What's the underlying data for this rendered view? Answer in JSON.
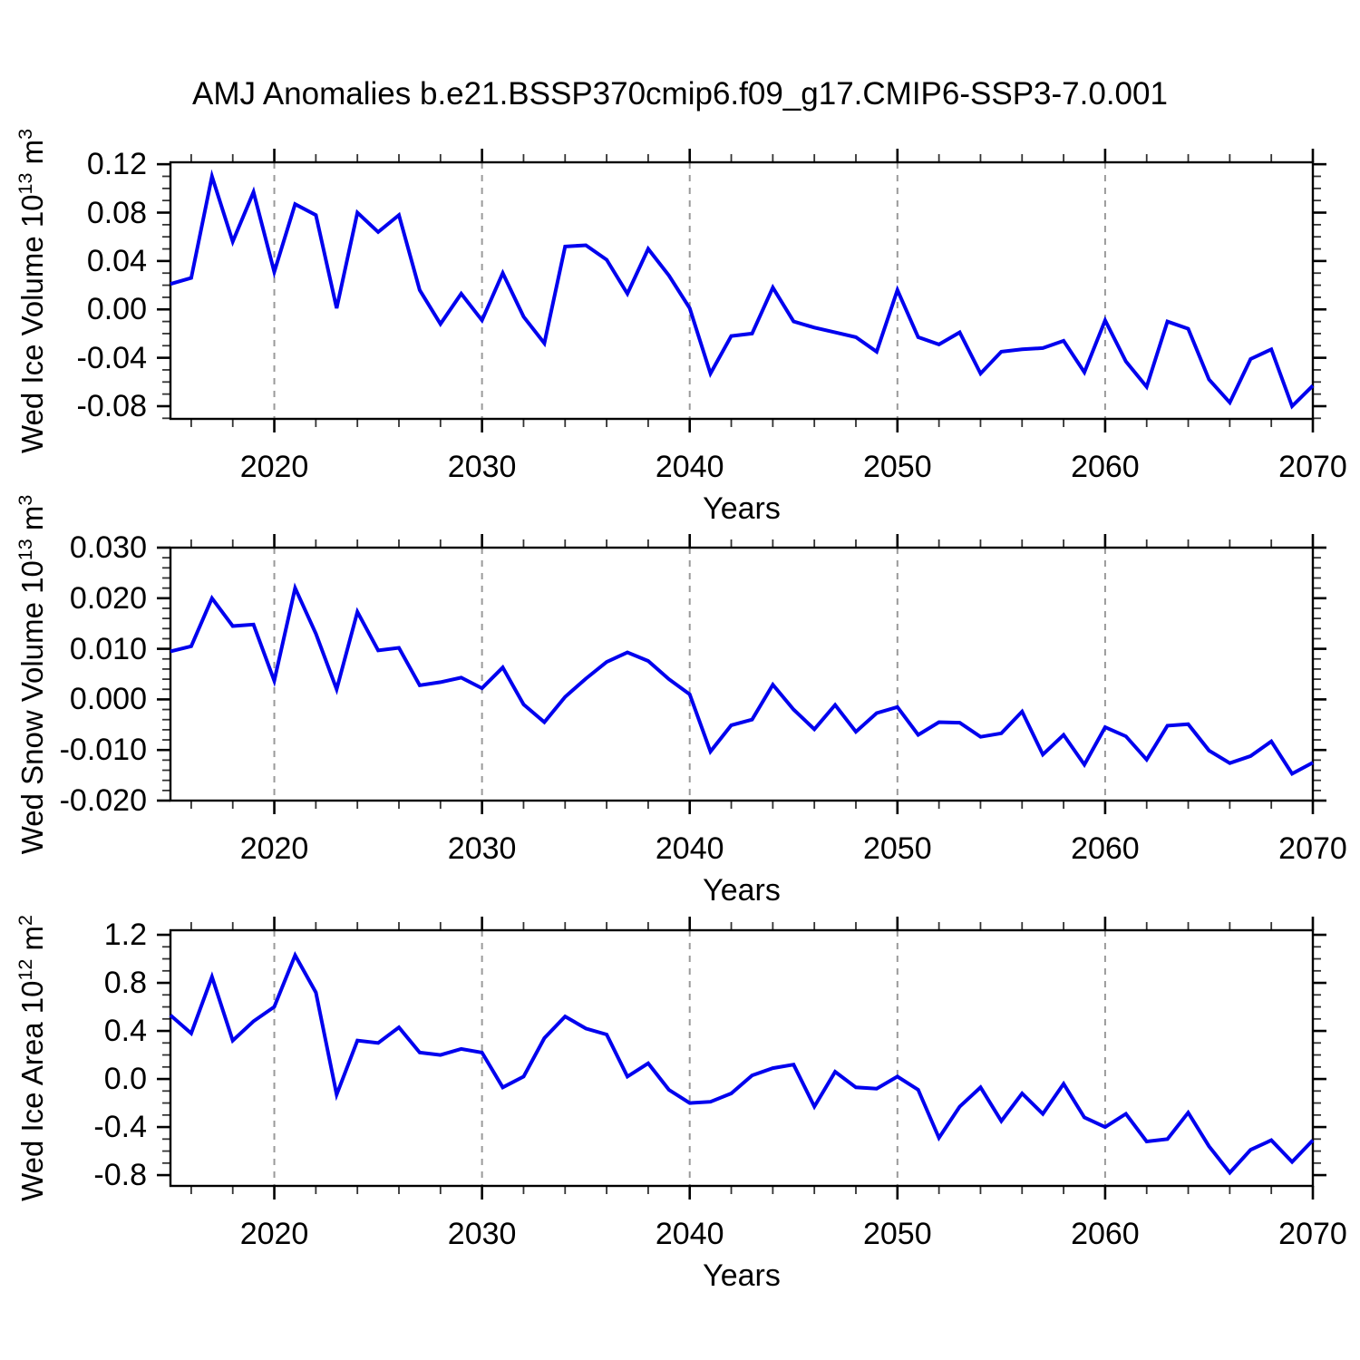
{
  "title": "AMJ Anomalies b.e21.BSSP370cmip6.f09_g17.CMIP6-SSP3-7.0.001",
  "colors": {
    "line": "#0000EE",
    "grid": "#9a9a9a",
    "axis": "#000000",
    "minor_tick": "#333333",
    "text": "#000000",
    "background": "#ffffff"
  },
  "chart_data": [
    {
      "type": "line",
      "name": "wed-ice-volume",
      "ylabel_text": "Wed Ice Volume 10^13 m^3",
      "ylabel_segments": [
        {
          "t": "Wed Ice Volume 10"
        },
        {
          "t": "13",
          "sup": true
        },
        {
          "t": " m"
        },
        {
          "t": "3",
          "sup": true
        }
      ],
      "xlabel": "Years",
      "xlim": [
        2015,
        2070
      ],
      "ylim": [
        -0.0905,
        0.1216
      ],
      "xticks": [
        2020,
        2030,
        2040,
        2050,
        2060,
        2070
      ],
      "xtick_labels": [
        "2020",
        "2030",
        "2040",
        "2050",
        "2060",
        "2070"
      ],
      "xtick_minor_step": 2,
      "ytick_values": [
        0.12,
        0.08,
        0.04,
        0.0,
        -0.04,
        -0.08
      ],
      "ytick_labels": [
        "0.12",
        "0.08",
        "0.04",
        "0.00",
        "-0.04",
        "-0.08"
      ],
      "ytick_major_step": 0.04,
      "ytick_minor_step": 0.01,
      "grid_years": [
        2020,
        2030,
        2040,
        2050,
        2060
      ],
      "grid_on": true,
      "legend": "none",
      "x": [
        2015,
        2016,
        2017,
        2018,
        2019,
        2020,
        2021,
        2022,
        2023,
        2024,
        2025,
        2026,
        2027,
        2028,
        2029,
        2030,
        2031,
        2032,
        2033,
        2034,
        2035,
        2036,
        2037,
        2038,
        2039,
        2040,
        2041,
        2042,
        2043,
        2044,
        2045,
        2046,
        2047,
        2048,
        2049,
        2050,
        2051,
        2052,
        2053,
        2054,
        2055,
        2056,
        2057,
        2058,
        2059,
        2060,
        2061,
        2062,
        2063,
        2064,
        2065,
        2066,
        2067,
        2068,
        2069,
        2070
      ],
      "values": [
        0.021,
        0.026,
        0.11,
        0.056,
        0.097,
        0.031,
        0.087,
        0.078,
        0.001,
        0.08,
        0.064,
        0.078,
        0.016,
        -0.012,
        0.013,
        -0.009,
        0.03,
        -0.006,
        -0.028,
        0.052,
        0.053,
        0.041,
        0.013,
        0.05,
        0.028,
        0.001,
        -0.053,
        -0.022,
        -0.02,
        0.018,
        -0.01,
        -0.015,
        -0.019,
        -0.023,
        -0.035,
        0.016,
        -0.023,
        -0.029,
        -0.019,
        -0.053,
        -0.035,
        -0.033,
        -0.032,
        -0.026,
        -0.052,
        -0.009,
        -0.043,
        -0.064,
        -0.01,
        -0.016,
        -0.058,
        -0.077,
        -0.041,
        -0.033,
        -0.08,
        -0.063
      ]
    },
    {
      "type": "line",
      "name": "wed-snow-volume",
      "ylabel_text": "Wed Snow Volume 10^13 m^3",
      "ylabel_segments": [
        {
          "t": "Wed Snow Volume 10"
        },
        {
          "t": "13",
          "sup": true
        },
        {
          "t": " m"
        },
        {
          "t": "3",
          "sup": true
        }
      ],
      "xlabel": "Years",
      "xlim": [
        2015,
        2070
      ],
      "ylim": [
        -0.02,
        0.03
      ],
      "xticks": [
        2020,
        2030,
        2040,
        2050,
        2060,
        2070
      ],
      "xtick_labels": [
        "2020",
        "2030",
        "2040",
        "2050",
        "2060",
        "2070"
      ],
      "xtick_minor_step": 2,
      "ytick_values": [
        0.03,
        0.02,
        0.01,
        0.0,
        -0.01,
        -0.02
      ],
      "ytick_labels": [
        "0.030",
        "0.020",
        "0.010",
        "0.000",
        "-0.010",
        "-0.020"
      ],
      "ytick_major_step": 0.01,
      "ytick_minor_step": 0.002,
      "grid_years": [
        2020,
        2030,
        2040,
        2050,
        2060
      ],
      "grid_on": true,
      "legend": "none",
      "x": [
        2015,
        2016,
        2017,
        2018,
        2019,
        2020,
        2021,
        2022,
        2023,
        2024,
        2025,
        2026,
        2027,
        2028,
        2029,
        2030,
        2031,
        2032,
        2033,
        2034,
        2035,
        2036,
        2037,
        2038,
        2039,
        2040,
        2041,
        2042,
        2043,
        2044,
        2045,
        2046,
        2047,
        2048,
        2049,
        2050,
        2051,
        2052,
        2053,
        2054,
        2055,
        2056,
        2057,
        2058,
        2059,
        2060,
        2061,
        2062,
        2063,
        2064,
        2065,
        2066,
        2067,
        2068,
        2069,
        2070
      ],
      "values": [
        0.0095,
        0.0105,
        0.02,
        0.0145,
        0.0148,
        0.0037,
        0.022,
        0.013,
        0.002,
        0.0173,
        0.0097,
        0.0102,
        0.0028,
        0.0034,
        0.0043,
        0.0022,
        0.0063,
        -0.001,
        -0.0045,
        0.0005,
        0.0041,
        0.0074,
        0.0093,
        0.0076,
        0.004,
        0.001,
        -0.0103,
        -0.0051,
        -0.004,
        0.0029,
        -0.002,
        -0.0059,
        -0.0011,
        -0.0064,
        -0.0027,
        -0.0015,
        -0.007,
        -0.0045,
        -0.0046,
        -0.0074,
        -0.0067,
        -0.0024,
        -0.0109,
        -0.007,
        -0.0129,
        -0.0055,
        -0.0073,
        -0.0119,
        -0.0052,
        -0.0049,
        -0.0101,
        -0.0126,
        -0.0112,
        -0.0083,
        -0.0147,
        -0.0125
      ]
    },
    {
      "type": "line",
      "name": "wed-ice-area",
      "ylabel_text": "Wed Ice Area 10^12 m^2",
      "ylabel_segments": [
        {
          "t": "Wed Ice Area 10"
        },
        {
          "t": "12",
          "sup": true
        },
        {
          "t": " m"
        },
        {
          "t": "2",
          "sup": true
        }
      ],
      "xlabel": "Years",
      "xlim": [
        2015,
        2070
      ],
      "ylim": [
        -0.89,
        1.238
      ],
      "xticks": [
        2020,
        2030,
        2040,
        2050,
        2060,
        2070
      ],
      "xtick_labels": [
        "2020",
        "2030",
        "2040",
        "2050",
        "2060",
        "2070"
      ],
      "xtick_minor_step": 2,
      "ytick_values": [
        1.2,
        0.8,
        0.4,
        0.0,
        -0.4,
        -0.8
      ],
      "ytick_labels": [
        "1.2",
        "0.8",
        "0.4",
        "0.0",
        "-0.4",
        "-0.8"
      ],
      "ytick_major_step": 0.4,
      "ytick_minor_step": 0.1,
      "grid_years": [
        2020,
        2030,
        2040,
        2050,
        2060
      ],
      "grid_on": true,
      "legend": "none",
      "x": [
        2015,
        2016,
        2017,
        2018,
        2019,
        2020,
        2021,
        2022,
        2023,
        2024,
        2025,
        2026,
        2027,
        2028,
        2029,
        2030,
        2031,
        2032,
        2033,
        2034,
        2035,
        2036,
        2037,
        2038,
        2039,
        2040,
        2041,
        2042,
        2043,
        2044,
        2045,
        2046,
        2047,
        2048,
        2049,
        2050,
        2051,
        2052,
        2053,
        2054,
        2055,
        2056,
        2057,
        2058,
        2059,
        2060,
        2061,
        2062,
        2063,
        2064,
        2065,
        2066,
        2067,
        2068,
        2069,
        2070
      ],
      "values": [
        0.53,
        0.38,
        0.85,
        0.32,
        0.48,
        0.6,
        1.03,
        0.72,
        -0.13,
        0.32,
        0.3,
        0.43,
        0.22,
        0.2,
        0.25,
        0.22,
        -0.07,
        0.02,
        0.34,
        0.52,
        0.42,
        0.37,
        0.02,
        0.13,
        -0.09,
        -0.2,
        -0.19,
        -0.12,
        0.03,
        0.09,
        0.12,
        -0.23,
        0.06,
        -0.07,
        -0.08,
        0.02,
        -0.09,
        -0.49,
        -0.23,
        -0.07,
        -0.35,
        -0.12,
        -0.29,
        -0.04,
        -0.32,
        -0.4,
        -0.29,
        -0.52,
        -0.5,
        -0.28,
        -0.56,
        -0.78,
        -0.59,
        -0.51,
        -0.69,
        -0.51
      ]
    }
  ]
}
